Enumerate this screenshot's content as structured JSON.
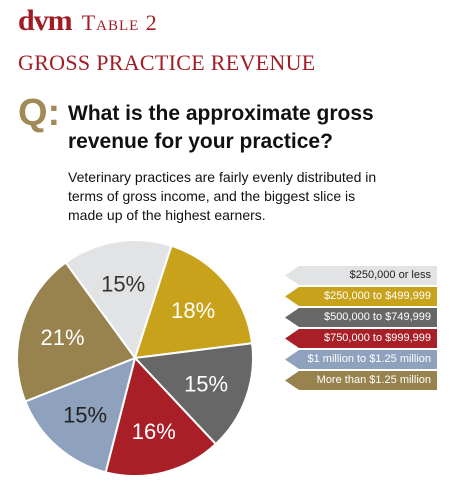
{
  "header": {
    "brand": "dvm",
    "table_label": "Table 2",
    "title": "GROSS PRACTICE REVENUE"
  },
  "question": {
    "prefix": "Q:",
    "text": "What is the approximate gross revenue for your practice?",
    "description": "Veterinary practices are fairly evenly distributed in terms of gross income, and the biggest slice is made up of the highest earners."
  },
  "chart_data": {
    "type": "pie",
    "title": "GROSS PRACTICE REVENUE",
    "slices": [
      {
        "label": "$250,000 or less",
        "value": 15,
        "display": "15%",
        "color": "#e2e3e4",
        "text_color": "#333333",
        "legend_text_color": "#222222"
      },
      {
        "label": "$250,000 to $499,999",
        "value": 18,
        "display": "18%",
        "color": "#c9a21c",
        "text_color": "#ffffff",
        "legend_text_color": "#ffffff"
      },
      {
        "label": "$500,000 to $749,999",
        "value": 15,
        "display": "15%",
        "color": "#676767",
        "text_color": "#ffffff",
        "legend_text_color": "#ffffff"
      },
      {
        "label": "$750,000 to $999,999",
        "value": 16,
        "display": "16%",
        "color": "#a81f28",
        "text_color": "#ffffff",
        "legend_text_color": "#ffffff"
      },
      {
        "label": "$1 million to $1.25 million",
        "value": 15,
        "display": "15%",
        "color": "#8ea2bd",
        "text_color": "#222222",
        "legend_text_color": "#ffffff"
      },
      {
        "label": "More than $1.25 million",
        "value": 21,
        "display": "21%",
        "color": "#98824e",
        "text_color": "#ffffff",
        "legend_text_color": "#ffffff"
      }
    ],
    "start_angle_deg": -36,
    "legend_position": "right"
  }
}
